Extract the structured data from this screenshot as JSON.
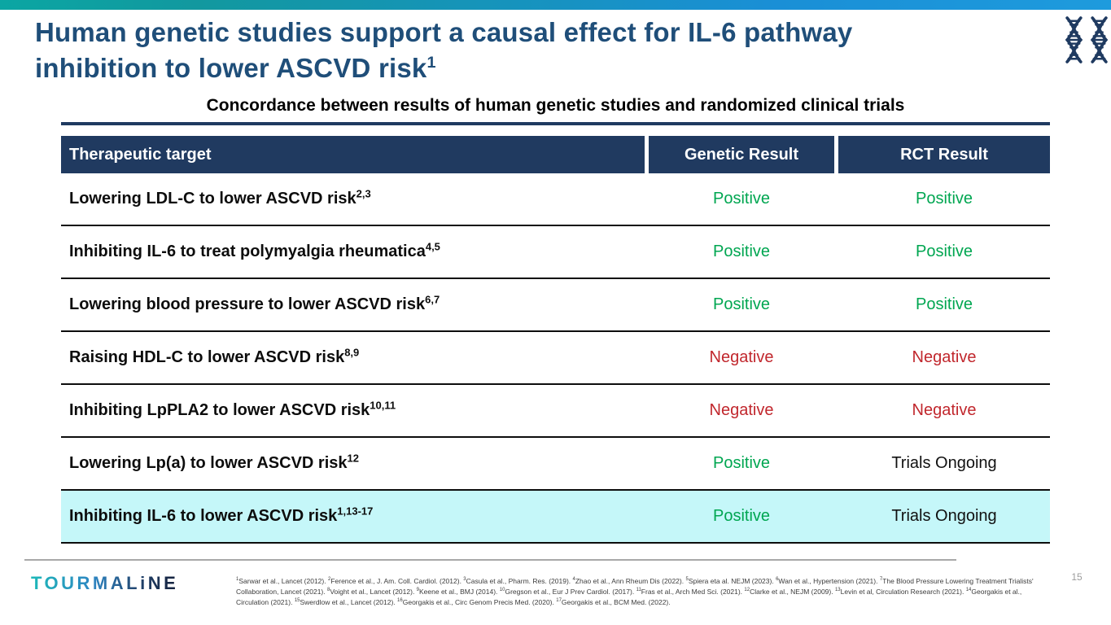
{
  "slide": {
    "title": {
      "lines": [
        "Human genetic studies support a causal effect for IL-6 pathway",
        "inhibition to lower ASCVD risk"
      ],
      "sup": "1"
    },
    "page_number": "15"
  },
  "table": {
    "caption": "Concordance between results of human genetic studies and randomized clinical trials",
    "headers": [
      "Therapeutic target",
      "Genetic Result",
      "RCT Result"
    ],
    "rows": [
      {
        "target": "Lowering LDL-C to lower ASCVD risk",
        "sup": "2,3",
        "genetic": "Positive",
        "genetic_status": "positive",
        "rct": "Positive",
        "rct_status": "positive",
        "highlight": false
      },
      {
        "target": "Inhibiting IL-6 to treat polymyalgia rheumatica",
        "sup": "4,5",
        "genetic": "Positive",
        "genetic_status": "positive",
        "rct": "Positive",
        "rct_status": "positive",
        "highlight": false
      },
      {
        "target": "Lowering blood pressure to lower ASCVD risk",
        "sup": "6,7",
        "genetic": "Positive",
        "genetic_status": "positive",
        "rct": "Positive",
        "rct_status": "positive",
        "highlight": false
      },
      {
        "target": "Raising HDL-C to lower ASCVD risk",
        "sup": "8,9",
        "genetic": "Negative",
        "genetic_status": "negative",
        "rct": "Negative",
        "rct_status": "negative",
        "highlight": false
      },
      {
        "target": "Inhibiting LpPLA2 to lower ASCVD risk",
        "sup": "10,11",
        "genetic": "Negative",
        "genetic_status": "negative",
        "rct": "Negative",
        "rct_status": "negative",
        "highlight": false
      },
      {
        "target": "Lowering Lp(a) to lower ASCVD risk",
        "sup": "12",
        "genetic": "Positive",
        "genetic_status": "positive",
        "rct": "Trials Ongoing",
        "rct_status": "neutral",
        "highlight": false
      },
      {
        "target": "Inhibiting IL-6 to lower ASCVD risk",
        "sup": "1,13-17",
        "genetic": "Positive",
        "genetic_status": "positive",
        "rct": "Trials Ongoing",
        "rct_status": "neutral",
        "highlight": true
      }
    ]
  },
  "colors": {
    "positive": "#00A651",
    "negative": "#C1272D",
    "neutral": "#111111",
    "highlight_row": "#C5F7F9",
    "accent_navy": "#203A60",
    "title_blue": "#1F4E79"
  },
  "footer": {
    "logo": "TOURMALiNE",
    "references": [
      {
        "sup": "1",
        "text": "Sarwar et al., Lancet (2012)."
      },
      {
        "sup": "2",
        "text": "Ference et al., J. Am. Coll. Cardiol. (2012)."
      },
      {
        "sup": "3",
        "text": "Casula et al., Pharm. Res. (2019)."
      },
      {
        "sup": "4",
        "text": "Zhao et al., Ann Rheum Dis (2022)."
      },
      {
        "sup": "5",
        "text": "Spiera eta al. NEJM (2023)."
      },
      {
        "sup": "6",
        "text": "Wan et al., Hypertension (2021)."
      },
      {
        "sup": "7",
        "text": "The Blood Pressure Lowering Treatment Trialists' Collaboration, Lancet (2021)."
      },
      {
        "sup": "8",
        "text": "Voight et al., Lancet (2012)."
      },
      {
        "sup": "9",
        "text": "Keene et al., BMJ (2014)."
      },
      {
        "sup": "10",
        "text": "Gregson et al., Eur J Prev Cardiol. (2017)."
      },
      {
        "sup": "11",
        "text": "Fras et al., Arch Med Sci. (2021)."
      },
      {
        "sup": "12",
        "text": "Clarke et al., NEJM (2009)."
      },
      {
        "sup": "13",
        "text": "Levin et al, Circulation Research (2021)."
      },
      {
        "sup": "14",
        "text": "Georgakis et al., Circulation (2021)."
      },
      {
        "sup": "15",
        "text": "Swerdlow et al., Lancet (2012)."
      },
      {
        "sup": "16",
        "text": "Georgakis et al., Circ Genom Precis Med. (2020)."
      },
      {
        "sup": "17",
        "text": "Georgakis et al., BCM Med. (2022)."
      }
    ]
  },
  "icons": {
    "dna": "dna-double-helix"
  }
}
